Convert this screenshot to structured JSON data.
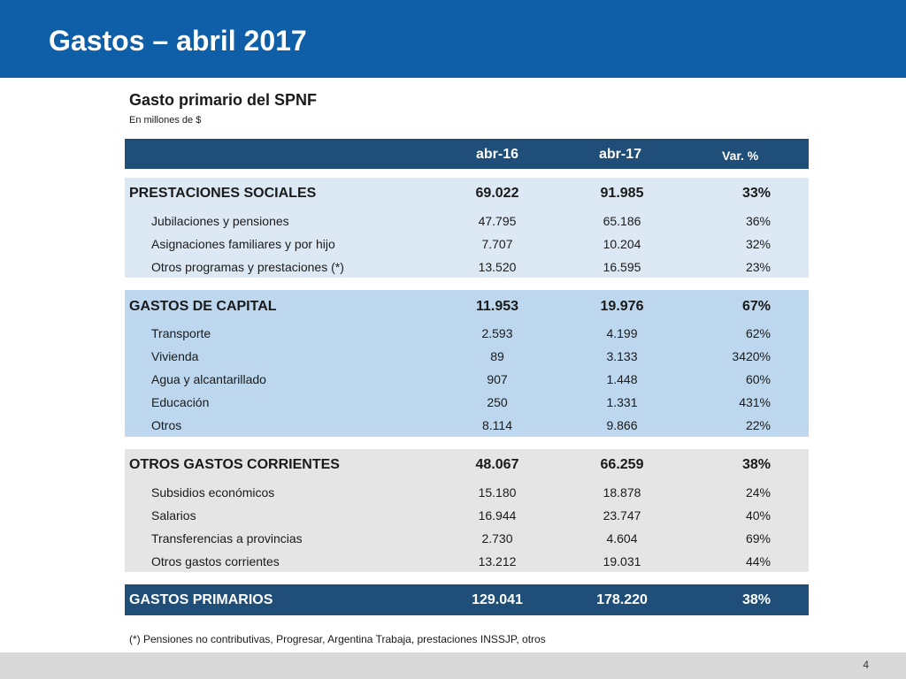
{
  "header": {
    "title": "Gastos – abril 2017"
  },
  "table": {
    "subtitle": "Gasto primario del SPNF",
    "units": "En millones de $",
    "columns": {
      "a": "abr-16",
      "b": "abr-17",
      "var": "Var. %"
    },
    "sections": [
      {
        "label": "PRESTACIONES SOCIALES",
        "a": "69.022",
        "b": "91.985",
        "var": "33%",
        "rows": [
          {
            "label": "Jubilaciones y pensiones",
            "a": "47.795",
            "b": "65.186",
            "var": "36%"
          },
          {
            "label": "Asignaciones familiares y por hijo",
            "a": "7.707",
            "b": "10.204",
            "var": "32%"
          },
          {
            "label": "Otros programas y prestaciones (*)",
            "a": "13.520",
            "b": "16.595",
            "var": "23%"
          }
        ]
      },
      {
        "label": "GASTOS DE CAPITAL",
        "a": "11.953",
        "b": "19.976",
        "var": "67%",
        "rows": [
          {
            "label": "Transporte",
            "a": "2.593",
            "b": "4.199",
            "var": "62%"
          },
          {
            "label": "Vivienda",
            "a": "89",
            "b": "3.133",
            "var": "3420%"
          },
          {
            "label": "Agua y alcantarillado",
            "a": "907",
            "b": "1.448",
            "var": "60%"
          },
          {
            "label": "Educación",
            "a": "250",
            "b": "1.331",
            "var": "431%"
          },
          {
            "label": "Otros",
            "a": "8.114",
            "b": "9.866",
            "var": "22%"
          }
        ]
      },
      {
        "label": "OTROS GASTOS CORRIENTES",
        "a": "48.067",
        "b": "66.259",
        "var": "38%",
        "rows": [
          {
            "label": "Subsidios económicos",
            "a": "15.180",
            "b": "18.878",
            "var": "24%"
          },
          {
            "label": "Salarios",
            "a": "16.944",
            "b": "23.747",
            "var": "40%"
          },
          {
            "label": "Transferencias a provincias",
            "a": "2.730",
            "b": "4.604",
            "var": "69%"
          },
          {
            "label": "Otros gastos corrientes",
            "a": "13.212",
            "b": "19.031",
            "var": "44%"
          }
        ]
      }
    ],
    "total": {
      "label": "GASTOS PRIMARIOS",
      "a": "129.041",
      "b": "178.220",
      "var": "38%"
    },
    "footnote": "(*) Pensiones no contributivas, Progresar, Argentina Trabaja, prestaciones INSSJP, otros"
  },
  "footer": {
    "page_number": "4"
  }
}
